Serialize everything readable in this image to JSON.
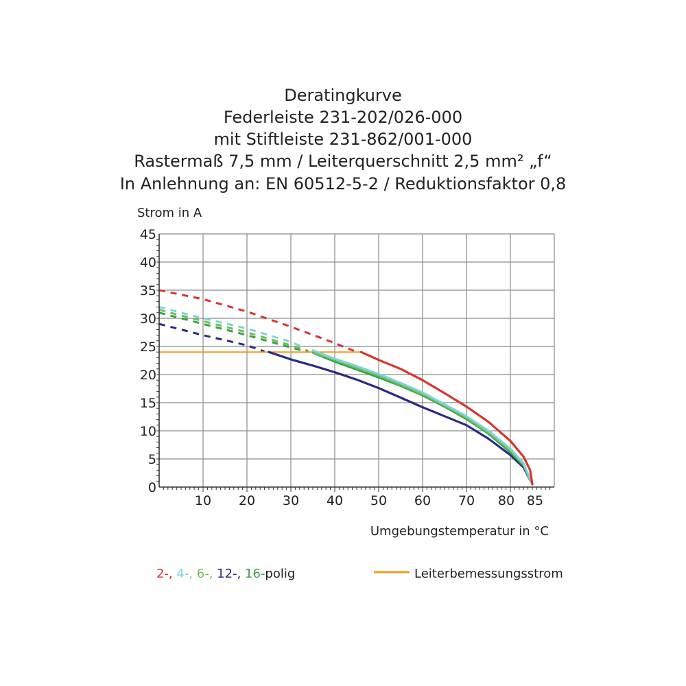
{
  "chart_data": {
    "type": "line",
    "title_lines": [
      "Deratingkurve",
      "Federleiste 231-202/026-000",
      "mit Stiftleiste 231-862/001-000",
      "Rastermaß 7,5 mm / Leiterquerschnitt 2,5 mm² „f“",
      "In Anlehnung an: EN 60512-5-2 / Reduktionsfaktor 0,8"
    ],
    "ylabel": "Strom in A",
    "xlabel": "Umgebungstemperatur in °C",
    "xlim": [
      0,
      90
    ],
    "ylim": [
      0,
      45
    ],
    "x_ticks": [
      10,
      20,
      30,
      40,
      50,
      60,
      70,
      80,
      85
    ],
    "y_ticks": [
      0,
      5,
      10,
      15,
      20,
      25,
      30,
      35,
      40,
      45
    ],
    "grid": true,
    "rated_current": {
      "name": "Leiterbemessungsstrom",
      "color": "#f39a1e",
      "y": 24,
      "x_range": [
        0,
        46
      ]
    },
    "series": [
      {
        "name": "2-",
        "color": "#d9342b",
        "dashed": [
          [
            0,
            35
          ],
          [
            10,
            33.4
          ],
          [
            20,
            31.2
          ],
          [
            30,
            28.5
          ],
          [
            40,
            25.6
          ],
          [
            45,
            24
          ]
        ],
        "solid": [
          [
            46,
            24
          ],
          [
            50,
            22.6
          ],
          [
            55,
            21
          ],
          [
            60,
            19
          ],
          [
            65,
            16.7
          ],
          [
            70,
            14.3
          ],
          [
            75,
            11.6
          ],
          [
            80,
            8.2
          ],
          [
            83,
            5.4
          ],
          [
            84.5,
            3
          ],
          [
            85,
            0.5
          ]
        ]
      },
      {
        "name": "4-",
        "color": "#7fd3d9",
        "dashed": [
          [
            0,
            32
          ],
          [
            10,
            30
          ],
          [
            20,
            28.2
          ],
          [
            30,
            25.8
          ],
          [
            33,
            24.8
          ]
        ],
        "solid": [
          [
            35,
            24.3
          ],
          [
            40,
            22.8
          ],
          [
            45,
            21.5
          ],
          [
            50,
            20.1
          ],
          [
            55,
            18.5
          ],
          [
            60,
            16.8
          ],
          [
            65,
            14.7
          ],
          [
            70,
            12.6
          ],
          [
            75,
            10
          ],
          [
            80,
            6.8
          ],
          [
            83,
            4.2
          ],
          [
            85,
            0.5
          ]
        ]
      },
      {
        "name": "6-",
        "color": "#6dbf55",
        "dashed": [
          [
            0,
            31.5
          ],
          [
            10,
            29.5
          ],
          [
            20,
            27.5
          ],
          [
            30,
            25.2
          ],
          [
            34,
            24.2
          ]
        ],
        "solid": [
          [
            35,
            24
          ],
          [
            40,
            22.6
          ],
          [
            45,
            21.2
          ],
          [
            50,
            19.8
          ],
          [
            55,
            18.2
          ],
          [
            60,
            16.5
          ],
          [
            65,
            14.5
          ],
          [
            70,
            12.3
          ],
          [
            75,
            9.7
          ],
          [
            80,
            6.5
          ],
          [
            83,
            4
          ],
          [
            85,
            0.5
          ]
        ]
      },
      {
        "name": "12-",
        "color": "#2a2a86",
        "dashed": [
          [
            0,
            29
          ],
          [
            10,
            27
          ],
          [
            20,
            25.2
          ],
          [
            24,
            24.1
          ]
        ],
        "solid": [
          [
            25,
            24
          ],
          [
            30,
            22.7
          ],
          [
            35,
            21.6
          ],
          [
            40,
            20.4
          ],
          [
            45,
            19.1
          ],
          [
            50,
            17.6
          ],
          [
            55,
            15.9
          ],
          [
            60,
            14.2
          ],
          [
            65,
            12.6
          ],
          [
            70,
            11
          ],
          [
            75,
            8.6
          ],
          [
            80,
            5.7
          ],
          [
            83,
            3.5
          ],
          [
            85,
            0.5
          ]
        ]
      },
      {
        "name": "16-",
        "color": "#3aa046",
        "dashed": [
          [
            0,
            31
          ],
          [
            10,
            29
          ],
          [
            20,
            27
          ],
          [
            30,
            24.8
          ],
          [
            34,
            24
          ]
        ],
        "solid": [
          [
            35,
            23.9
          ],
          [
            40,
            22.3
          ],
          [
            45,
            20.9
          ],
          [
            50,
            19.5
          ],
          [
            55,
            18
          ],
          [
            60,
            16.3
          ],
          [
            65,
            14.3
          ],
          [
            70,
            12.1
          ],
          [
            75,
            9.5
          ],
          [
            80,
            6.2
          ],
          [
            83,
            3.8
          ],
          [
            85,
            0.5
          ]
        ]
      }
    ],
    "legend": {
      "series_suffix": "polig",
      "series_labels": [
        {
          "text": "2-, ",
          "color": "#d9342b"
        },
        {
          "text": "4-, ",
          "color": "#7fd3d9"
        },
        {
          "text": "6-, ",
          "color": "#6dbf55"
        },
        {
          "text": "12-, ",
          "color": "#2a2a86"
        },
        {
          "text": "16-",
          "color": "#3aa046"
        }
      ],
      "rated_label": "Leiterbemessungsstrom"
    }
  }
}
